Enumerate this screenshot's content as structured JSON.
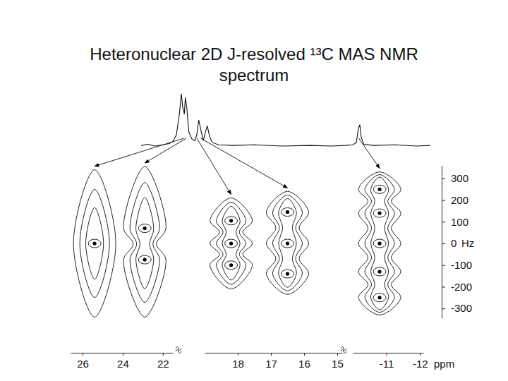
{
  "chart_data": {
    "type": "contour",
    "title": [
      "Heteronuclear 2D J-resolved ¹³C MAS NMR",
      "spectrum"
    ],
    "ylim": [
      -345,
      360
    ],
    "yticks": [
      300,
      200,
      100,
      0,
      -100,
      -200,
      -300
    ],
    "ylabel": "Hz",
    "xlabel": "ppm",
    "xaxes": [
      {
        "xlim": [
          26.6,
          21.5
        ],
        "xticks": [
          26,
          24,
          22
        ]
      },
      {
        "xlim": [
          19,
          14.85
        ],
        "xticks": [
          18,
          17,
          16,
          15
        ]
      },
      {
        "xlim": [
          -10.0,
          -12.1
        ],
        "xticks": [
          -11,
          -12
        ]
      }
    ],
    "multiplets": [
      {
        "shift": 25.4,
        "source": 24.6,
        "peaks": [
          0
        ],
        "extent": [
          -340,
          340
        ]
      },
      {
        "shift": 22.9,
        "source": 24.1,
        "peaks": [
          70,
          -75
        ],
        "extent": [
          -340,
          355
        ]
      },
      {
        "shift": 18.2,
        "source": 22.0,
        "peaks": [
          105,
          0,
          -100
        ],
        "extent": [
          -210,
          210
        ]
      },
      {
        "shift": 16.5,
        "source": 21.2,
        "peaks": [
          145,
          0,
          -140
        ],
        "extent": [
          -235,
          240
        ]
      },
      {
        "shift": -10.8,
        "source": -10.6,
        "peaks": [
          250,
          140,
          0,
          -130,
          -250
        ],
        "extent": [
          -330,
          330
        ]
      }
    ],
    "spectrum": {
      "xlim": [
        33.2,
        -25.0
      ],
      "ylim": [
        0,
        100
      ],
      "x": [
        33.2,
        31.8,
        30.4,
        28.9,
        27.5,
        26.8,
        26.1,
        25.5,
        25.1,
        24.8,
        24.5,
        24.3,
        24.0,
        23.6,
        23.0,
        22.4,
        22.0,
        21.6,
        21.1,
        20.7,
        20.3,
        19.9,
        19.4,
        18.9,
        17.6,
        14.8,
        10.5,
        4.8,
        -0.8,
        -5.1,
        -7.9,
        -9.4,
        -10.1,
        -10.5,
        -10.8,
        -11.1,
        -11.6,
        -13.6,
        -17.9,
        -22.1,
        -25.0
      ],
      "y": [
        7,
        9,
        6,
        8,
        10,
        14,
        25,
        60,
        94,
        70,
        60,
        88,
        70,
        30,
        18,
        15,
        25,
        50,
        30,
        15,
        28,
        40,
        22,
        12,
        8,
        7,
        8,
        6,
        7,
        6,
        7,
        8,
        12,
        35,
        42,
        20,
        9,
        7,
        8,
        6,
        7
      ]
    }
  }
}
